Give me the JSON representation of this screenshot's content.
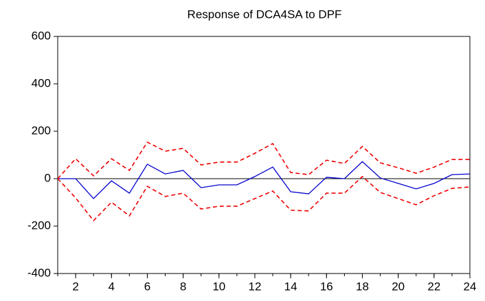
{
  "chart_data": {
    "type": "line",
    "title": "Response of DCA4SA to DPF",
    "x": [
      1,
      2,
      3,
      4,
      5,
      6,
      7,
      8,
      9,
      10,
      11,
      12,
      13,
      14,
      15,
      16,
      17,
      18,
      19,
      20,
      21,
      22,
      23,
      24
    ],
    "series": [
      {
        "color": "#0000cc",
        "line_style": "solid",
        "values": [
          0,
          0,
          -84,
          -9,
          -61,
          61,
          20,
          35,
          -38,
          -26,
          -26,
          9,
          49,
          -55,
          -64,
          6,
          0,
          72,
          3,
          -20,
          -43,
          -20,
          17,
          20
        ]
      },
      {
        "color": "#ee0000",
        "line_style": "dashed",
        "values": [
          0,
          84,
          12,
          84,
          35,
          154,
          116,
          128,
          58,
          70,
          70,
          107,
          148,
          26,
          17,
          78,
          64,
          136,
          67,
          46,
          23,
          49,
          81,
          81
        ]
      },
      {
        "color": "#ee0000",
        "line_style": "dashed",
        "values": [
          0,
          -81,
          -177,
          -99,
          -157,
          -32,
          -75,
          -61,
          -128,
          -116,
          -116,
          -84,
          -52,
          -133,
          -136,
          -61,
          -61,
          9,
          -58,
          -84,
          -110,
          -72,
          -41,
          -35
        ]
      }
    ],
    "xlim": [
      1,
      24
    ],
    "xticks": [
      2,
      4,
      6,
      8,
      10,
      12,
      14,
      16,
      18,
      20,
      22,
      24
    ],
    "ylim": [
      -400,
      600
    ],
    "yticks": [
      -400,
      -200,
      0,
      200,
      400,
      600
    ],
    "zero_line": true
  }
}
